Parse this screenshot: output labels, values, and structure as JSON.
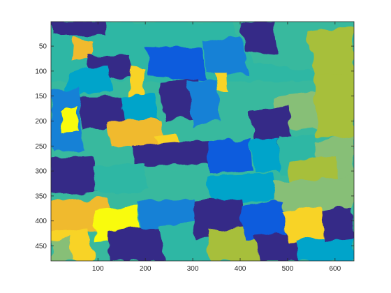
{
  "chart_data": {
    "type": "heatmap",
    "title": "",
    "xlabel": "",
    "ylabel": "",
    "x_range": [
      1,
      640
    ],
    "y_range": [
      1,
      480
    ],
    "y_direction": "reverse",
    "x_ticks": [
      100,
      200,
      300,
      400,
      500,
      600
    ],
    "y_ticks": [
      50,
      100,
      150,
      200,
      250,
      300,
      350,
      400,
      450
    ],
    "grid": false,
    "colormap": "parula",
    "colors": {
      "dark_blue": "#352a87",
      "mid_blue": "#0f5cdd",
      "blue": "#1481d6",
      "light_blue": "#06a4ca",
      "teal": "#2eb7a4",
      "green_teal": "#38b99e",
      "green": "#87bf77",
      "olive": "#a7bf3a",
      "yellow_orange": "#f0ba2e",
      "gold": "#f8d325",
      "yellow": "#f9fb0e"
    }
  }
}
